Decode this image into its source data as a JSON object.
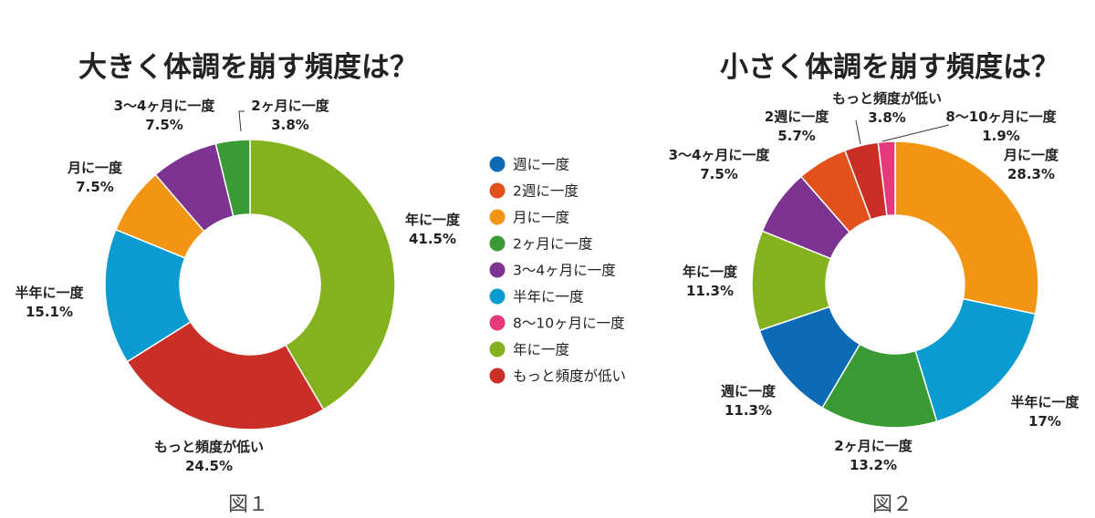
{
  "chart_data": [
    {
      "type": "pie",
      "donut": true,
      "title": "大きく体調を崩す頻度は？",
      "caption": "図１",
      "slices": [
        {
          "label": "年に一度",
          "value": 41.5,
          "value_text": "41.5%",
          "color": "#84b21e"
        },
        {
          "label": "もっと頻度が低い",
          "value": 24.5,
          "value_text": "24.5%",
          "color": "#c92f27"
        },
        {
          "label": "半年に一度",
          "value": 15.1,
          "value_text": "15.1%",
          "color": "#0a9bd0"
        },
        {
          "label": "月に一度",
          "value": 7.5,
          "value_text": "7.5%",
          "color": "#f39514"
        },
        {
          "label": "3〜4ヶ月に一度",
          "value": 7.5,
          "value_text": "7.5%",
          "color": "#7d3391"
        },
        {
          "label": "2ヶ月に一度",
          "value": 3.8,
          "value_text": "3.8%",
          "color": "#3a9b35"
        }
      ]
    },
    {
      "type": "pie",
      "donut": true,
      "title": "小さく体調を崩す頻度は？",
      "caption": "図２",
      "slices": [
        {
          "label": "月に一度",
          "value": 28.3,
          "value_text": "28.3%",
          "color": "#f39514"
        },
        {
          "label": "半年に一度",
          "value": 17,
          "value_text": "17%",
          "color": "#0a9bd0"
        },
        {
          "label": "2ヶ月に一度",
          "value": 13.2,
          "value_text": "13.2%",
          "color": "#3a9b35"
        },
        {
          "label": "週に一度",
          "value": 11.3,
          "value_text": "11.3%",
          "color": "#0d6ab5"
        },
        {
          "label": "年に一度",
          "value": 11.3,
          "value_text": "11.3%",
          "color": "#84b21e"
        },
        {
          "label": "3〜4ヶ月に一度",
          "value": 7.5,
          "value_text": "7.5%",
          "color": "#7d3391"
        },
        {
          "label": "2週に一度",
          "value": 5.7,
          "value_text": "5.7%",
          "color": "#e2501b"
        },
        {
          "label": "もっと頻度が低い",
          "value": 3.8,
          "value_text": "3.8%",
          "color": "#c92f27"
        },
        {
          "label": "8〜10ヶ月に一度",
          "value": 1.9,
          "value_text": "1.9%",
          "color": "#e5387d"
        }
      ]
    }
  ],
  "legend": [
    {
      "label": "週に一度",
      "color": "#0d6ab5"
    },
    {
      "label": "2週に一度",
      "color": "#e2501b"
    },
    {
      "label": "月に一度",
      "color": "#f39514"
    },
    {
      "label": "2ヶ月に一度",
      "color": "#3a9b35"
    },
    {
      "label": "3〜4ヶ月に一度",
      "color": "#7d3391"
    },
    {
      "label": "半年に一度",
      "color": "#0a9bd0"
    },
    {
      "label": "8〜10ヶ月に一度",
      "color": "#e5387d"
    },
    {
      "label": "年に一度",
      "color": "#84b21e"
    },
    {
      "label": "もっと頻度が低い",
      "color": "#c92f27"
    }
  ]
}
